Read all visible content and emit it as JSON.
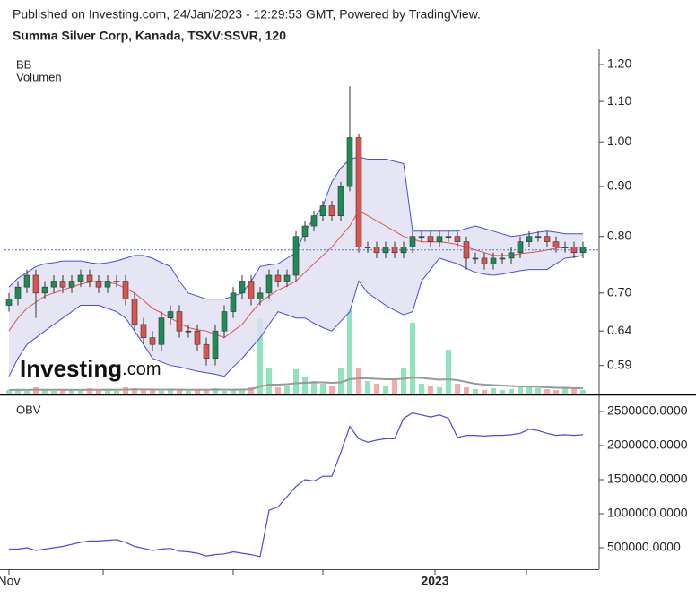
{
  "published": "Published on Investing.com, 24/Jan/2023 - 12:29:53 GMT, Powered by TradingView.",
  "watermark": [
    "Investing",
    ".com"
  ],
  "chart_data": [
    {
      "type": "candlestick",
      "title": "Summa Silver Corp, Kanada, TSXV:SSVR, 120",
      "indicator_labels": [
        "BB",
        "Volumen"
      ],
      "log": true,
      "ylim": [
        0.551,
        1.244
      ],
      "yticks": [
        0.59,
        0.64,
        {
          "value": 0.7,
          "label": "0.70"
        },
        {
          "value": 0.8,
          "label": "0.80"
        },
        {
          "value": 0.9,
          "label": "0.90"
        },
        {
          "value": 1.0,
          "label": "1.00"
        },
        {
          "value": 1.1,
          "label": "1.10"
        },
        {
          "value": 1.2,
          "label": "1.20"
        }
      ],
      "xlim": [
        -0.5,
        65.8
      ],
      "xticks": [
        {
          "value": 0,
          "label": "Nov"
        },
        10.5,
        25,
        35,
        {
          "value": 47.5,
          "label": "2023"
        },
        57.7
      ],
      "up_color": "#1e8a55",
      "down_color": "#d9534f",
      "wick_color": "#333333",
      "volume_up_color": "#8fe3bd",
      "volume_down_color": "#f5aaaa",
      "volume_ma_color": "#999999",
      "band_color": "#4b4bd8",
      "band_fill": "#dfdff0",
      "middle_color": "#e34f4f",
      "last_price_color": "#4b6fd8",
      "last_price": 0.775,
      "open": [
        0.68,
        0.69,
        0.71,
        0.73,
        0.7,
        0.71,
        0.72,
        0.71,
        0.72,
        0.73,
        0.72,
        0.71,
        0.72,
        0.72,
        0.69,
        0.65,
        0.63,
        0.62,
        0.66,
        0.67,
        0.64,
        0.64,
        0.62,
        0.6,
        0.64,
        0.67,
        0.7,
        0.72,
        0.69,
        0.7,
        0.73,
        0.72,
        0.73,
        0.8,
        0.82,
        0.84,
        0.86,
        0.84,
        0.9,
        1.01,
        0.78,
        0.78,
        0.77,
        0.78,
        0.77,
        0.78,
        0.8,
        0.8,
        0.79,
        0.8,
        0.8,
        0.79,
        0.76,
        0.76,
        0.75,
        0.76,
        0.76,
        0.77,
        0.79,
        0.8,
        0.8,
        0.79,
        0.78,
        0.78,
        0.77
      ],
      "high": [
        0.7,
        0.72,
        0.74,
        0.74,
        0.72,
        0.73,
        0.73,
        0.73,
        0.74,
        0.74,
        0.73,
        0.73,
        0.73,
        0.73,
        0.7,
        0.66,
        0.64,
        0.67,
        0.68,
        0.68,
        0.65,
        0.65,
        0.63,
        0.65,
        0.68,
        0.71,
        0.73,
        0.73,
        0.71,
        0.74,
        0.74,
        0.74,
        0.81,
        0.83,
        0.85,
        0.87,
        0.87,
        0.91,
        1.14,
        1.02,
        0.79,
        0.79,
        0.79,
        0.79,
        0.79,
        0.81,
        0.81,
        0.81,
        0.81,
        0.81,
        0.81,
        0.8,
        0.77,
        0.77,
        0.77,
        0.77,
        0.78,
        0.8,
        0.81,
        0.81,
        0.81,
        0.8,
        0.79,
        0.79,
        0.79
      ],
      "low": [
        0.67,
        0.68,
        0.7,
        0.66,
        0.69,
        0.7,
        0.7,
        0.7,
        0.71,
        0.71,
        0.7,
        0.7,
        0.71,
        0.68,
        0.64,
        0.62,
        0.61,
        0.61,
        0.65,
        0.63,
        0.63,
        0.61,
        0.59,
        0.59,
        0.63,
        0.66,
        0.69,
        0.68,
        0.68,
        0.69,
        0.71,
        0.71,
        0.72,
        0.79,
        0.81,
        0.83,
        0.83,
        0.83,
        0.89,
        0.77,
        0.77,
        0.76,
        0.76,
        0.76,
        0.76,
        0.77,
        0.79,
        0.78,
        0.78,
        0.79,
        0.78,
        0.74,
        0.75,
        0.74,
        0.74,
        0.75,
        0.75,
        0.76,
        0.78,
        0.79,
        0.78,
        0.77,
        0.77,
        0.76,
        0.76
      ],
      "close": [
        0.69,
        0.71,
        0.73,
        0.7,
        0.71,
        0.72,
        0.71,
        0.72,
        0.73,
        0.72,
        0.71,
        0.72,
        0.72,
        0.69,
        0.65,
        0.63,
        0.62,
        0.66,
        0.67,
        0.64,
        0.64,
        0.62,
        0.6,
        0.64,
        0.67,
        0.7,
        0.72,
        0.69,
        0.7,
        0.73,
        0.72,
        0.73,
        0.8,
        0.82,
        0.84,
        0.86,
        0.84,
        0.9,
        1.01,
        0.78,
        0.78,
        0.77,
        0.78,
        0.77,
        0.78,
        0.8,
        0.8,
        0.79,
        0.8,
        0.8,
        0.79,
        0.76,
        0.76,
        0.75,
        0.76,
        0.76,
        0.77,
        0.79,
        0.8,
        0.8,
        0.79,
        0.78,
        0.78,
        0.77,
        0.78
      ],
      "volume_ylim": [
        0,
        385000
      ],
      "volume": [
        5000,
        6000,
        4000,
        8000,
        5000,
        4000,
        6000,
        5000,
        4000,
        7000,
        5000,
        6000,
        4000,
        8000,
        7000,
        6000,
        5000,
        4000,
        6000,
        5000,
        4000,
        6000,
        5000,
        7000,
        4000,
        5000,
        6000,
        8000,
        85000,
        30000,
        8000,
        10000,
        28000,
        20000,
        15000,
        12000,
        10000,
        30000,
        95000,
        30000,
        15000,
        12000,
        10000,
        18000,
        30000,
        80000,
        12000,
        10000,
        8000,
        50000,
        12000,
        8000,
        6000,
        5000,
        7000,
        5000,
        6000,
        8000,
        10000,
        7000,
        6000,
        5000,
        8000,
        6000,
        5000
      ],
      "volume_ma": [
        5000,
        5200,
        5100,
        5400,
        5300,
        5200,
        5300,
        5200,
        5100,
        5300,
        5300,
        5400,
        5200,
        5500,
        5600,
        5600,
        5500,
        5400,
        5500,
        5400,
        5300,
        5400,
        5300,
        5500,
        5400,
        5400,
        5500,
        5700,
        9000,
        11000,
        11000,
        11500,
        12500,
        13000,
        13500,
        13500,
        13000,
        13500,
        17000,
        18000,
        18000,
        17500,
        17000,
        17000,
        17500,
        19000,
        18500,
        17500,
        16500,
        17000,
        16000,
        14000,
        12000,
        11000,
        10500,
        10000,
        9500,
        9000,
        9000,
        8500,
        8000,
        7500,
        7500,
        7000,
        7000
      ],
      "bb_upper": [
        0.71,
        0.725,
        0.735,
        0.745,
        0.75,
        0.752,
        0.755,
        0.755,
        0.755,
        0.752,
        0.75,
        0.752,
        0.755,
        0.76,
        0.765,
        0.765,
        0.76,
        0.752,
        0.745,
        0.72,
        0.7,
        0.695,
        0.69,
        0.69,
        0.69,
        0.695,
        0.7,
        0.72,
        0.745,
        0.748,
        0.75,
        0.76,
        0.77,
        0.81,
        0.835,
        0.86,
        0.91,
        0.94,
        0.96,
        0.965,
        0.96,
        0.96,
        0.96,
        0.955,
        0.95,
        0.81,
        0.81,
        0.81,
        0.81,
        0.81,
        0.81,
        0.815,
        0.82,
        0.815,
        0.81,
        0.805,
        0.8,
        0.802,
        0.805,
        0.808,
        0.81,
        0.808,
        0.805,
        0.805,
        0.805
      ],
      "bb_middle": [
        0.64,
        0.66,
        0.675,
        0.685,
        0.695,
        0.7,
        0.705,
        0.71,
        0.715,
        0.718,
        0.72,
        0.718,
        0.715,
        0.708,
        0.7,
        0.688,
        0.675,
        0.668,
        0.66,
        0.652,
        0.645,
        0.642,
        0.64,
        0.635,
        0.63,
        0.64,
        0.65,
        0.668,
        0.685,
        0.695,
        0.705,
        0.712,
        0.72,
        0.735,
        0.75,
        0.765,
        0.78,
        0.8,
        0.82,
        0.85,
        0.84,
        0.83,
        0.82,
        0.81,
        0.8,
        0.795,
        0.79,
        0.79,
        0.79,
        0.788,
        0.785,
        0.78,
        0.775,
        0.77,
        0.765,
        0.765,
        0.765,
        0.768,
        0.77,
        0.772,
        0.775,
        0.778,
        0.78,
        0.78,
        0.78
      ],
      "bb_lower": [
        0.575,
        0.6,
        0.62,
        0.63,
        0.64,
        0.65,
        0.66,
        0.67,
        0.68,
        0.68,
        0.68,
        0.675,
        0.67,
        0.66,
        0.64,
        0.62,
        0.6,
        0.595,
        0.59,
        0.588,
        0.585,
        0.582,
        0.58,
        0.578,
        0.575,
        0.588,
        0.6,
        0.615,
        0.63,
        0.65,
        0.67,
        0.665,
        0.66,
        0.66,
        0.652,
        0.645,
        0.64,
        0.655,
        0.67,
        0.72,
        0.7,
        0.69,
        0.68,
        0.672,
        0.665,
        0.67,
        0.72,
        0.74,
        0.76,
        0.755,
        0.75,
        0.742,
        0.735,
        0.732,
        0.73,
        0.732,
        0.735,
        0.738,
        0.74,
        0.74,
        0.74,
        0.75,
        0.76,
        0.762,
        0.765
      ]
    },
    {
      "type": "line",
      "title": "OBV",
      "color": "#4b4bd8",
      "ylim": [
        184000,
        2724000
      ],
      "yticks": [
        {
          "value": 500000,
          "label": "500000.0000"
        },
        {
          "value": 1000000,
          "label": "1000000.0000"
        },
        {
          "value": 1500000,
          "label": "1500000.0000"
        },
        {
          "value": 2000000,
          "label": "2000000.0000"
        },
        {
          "value": 2500000,
          "label": "2500000.0000"
        }
      ],
      "values": [
        480000,
        480000,
        500000,
        460000,
        480000,
        500000,
        520000,
        550000,
        580000,
        600000,
        600000,
        610000,
        620000,
        580000,
        520000,
        490000,
        460000,
        480000,
        490000,
        450000,
        440000,
        420000,
        380000,
        400000,
        410000,
        440000,
        420000,
        400000,
        370000,
        1050000,
        1100000,
        1250000,
        1400000,
        1500000,
        1480000,
        1550000,
        1550000,
        1900000,
        2280000,
        2100000,
        2050000,
        2080000,
        2100000,
        2100000,
        2400000,
        2480000,
        2450000,
        2420000,
        2450000,
        2400000,
        2120000,
        2150000,
        2150000,
        2140000,
        2150000,
        2150000,
        2160000,
        2180000,
        2240000,
        2220000,
        2180000,
        2150000,
        2160000,
        2150000,
        2160000
      ]
    }
  ]
}
